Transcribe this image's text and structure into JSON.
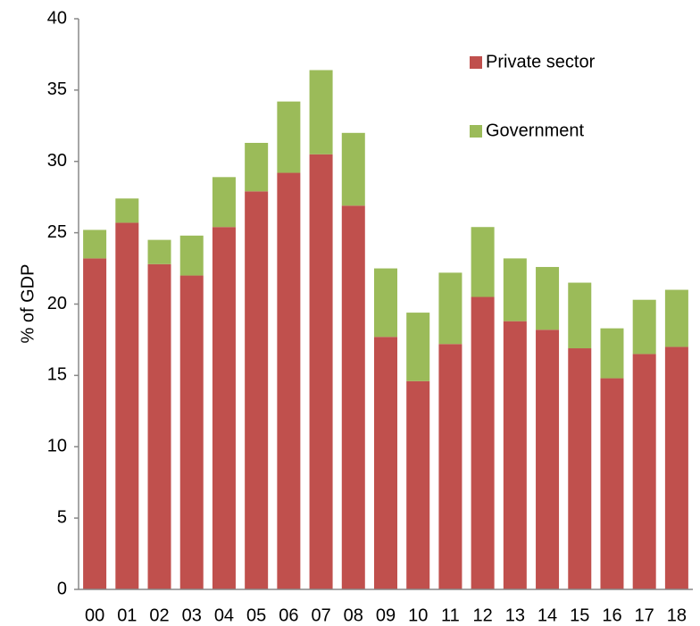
{
  "chart_data": {
    "type": "stacked_bar",
    "y_label": "% of GDP",
    "categories": [
      "00",
      "01",
      "02",
      "03",
      "04",
      "05",
      "06",
      "07",
      "08",
      "09",
      "10",
      "11",
      "12",
      "13",
      "14",
      "15",
      "16",
      "17",
      "18"
    ],
    "series": [
      {
        "name": "Private sector",
        "color": "#c0504d",
        "values": [
          23.2,
          25.7,
          22.8,
          22.0,
          25.4,
          27.9,
          29.2,
          30.5,
          26.9,
          17.7,
          14.6,
          17.2,
          20.5,
          18.8,
          18.2,
          16.9,
          14.8,
          16.5,
          17.0
        ]
      },
      {
        "name": "Government",
        "color": "#9bbb59",
        "values": [
          2.0,
          1.7,
          1.7,
          2.8,
          3.5,
          3.4,
          5.0,
          5.9,
          5.1,
          4.8,
          4.8,
          5.0,
          4.9,
          4.4,
          4.4,
          4.6,
          3.5,
          3.8,
          4.0
        ]
      }
    ],
    "ylim": [
      0,
      40
    ],
    "yticks": [
      0,
      5,
      10,
      15,
      20,
      25,
      30,
      35,
      40
    ],
    "grid": false,
    "legend": "top-right"
  }
}
